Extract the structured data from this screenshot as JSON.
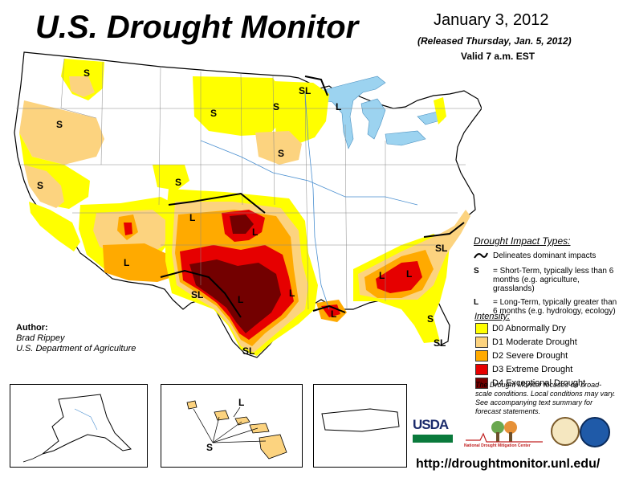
{
  "header": {
    "title": "U.S. Drought Monitor",
    "date": "January 3, 2012",
    "released": "(Released Thursday, Jan. 5, 2012)",
    "valid": "Valid 7 a.m. EST"
  },
  "colors": {
    "d0": "#ffff00",
    "d1": "#fcd37f",
    "d2": "#ffaa00",
    "d3": "#e60000",
    "d4": "#730000",
    "water": "#9cd3f0",
    "state_line": "#777777"
  },
  "impact_legend": {
    "heading": "Drought Impact Types:",
    "delineates": "Delineates dominant impacts",
    "s_symbol": "S",
    "s_text": "= Short-Term, typically less than 6 months (e.g. agriculture, grasslands)",
    "l_symbol": "L",
    "l_text": "= Long-Term, typically greater than 6 months (e.g. hydrology, ecology)"
  },
  "intensity": {
    "heading": "Intensity:",
    "levels": [
      {
        "label": "D0 Abnormally Dry",
        "color": "#ffff00"
      },
      {
        "label": "D1 Moderate Drought",
        "color": "#fcd37f"
      },
      {
        "label": "D2 Severe Drought",
        "color": "#ffaa00"
      },
      {
        "label": "D3 Extreme Drought",
        "color": "#e60000"
      },
      {
        "label": "D4 Exceptional Drought",
        "color": "#730000"
      }
    ]
  },
  "author": {
    "label": "Author:",
    "name": "Brad Rippey",
    "org": "U.S. Department of Agriculture"
  },
  "note": "The Drought Monitor focuses on broad-scale conditions. Local conditions may vary. See accompanying text summary for forecast statements.",
  "map_labels": [
    "S",
    "S",
    "S",
    "S",
    "SL",
    "L",
    "S",
    "S",
    "L",
    "L",
    "L",
    "SL",
    "L",
    "SL",
    "L",
    "L",
    "SL",
    "S",
    "SL",
    "L",
    "S",
    "L"
  ],
  "logos": {
    "usda": "USDA",
    "ndmc": "National Drought Mitigation Center"
  },
  "url": "http://droughtmonitor.unl.edu/"
}
